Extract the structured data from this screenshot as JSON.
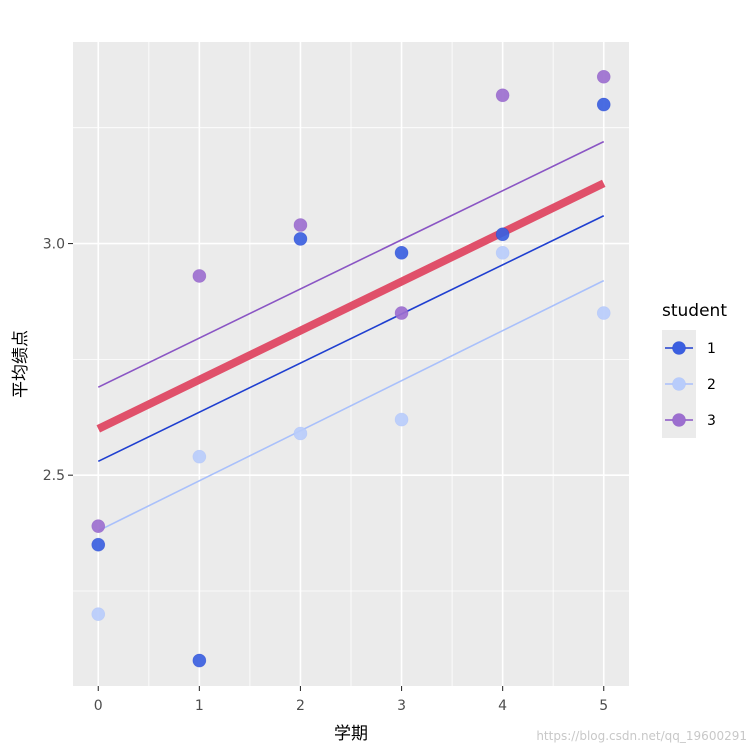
{
  "chart_data": {
    "type": "scatter",
    "xlabel": "学期",
    "ylabel": "平均绩点",
    "xlim": [
      -0.25,
      5.25
    ],
    "ylim": [
      2.045,
      3.435
    ],
    "x_ticks": [
      0,
      1,
      2,
      3,
      4,
      5
    ],
    "y_ticks": [
      2.5,
      3.0
    ],
    "y_minor_ticks": [
      2.25,
      2.75,
      3.25
    ],
    "x_minor_ticks": [
      0.5,
      1.5,
      2.5,
      3.5,
      4.5
    ],
    "grid": true,
    "legend_position": "right",
    "legend": {
      "title": "student",
      "entries": [
        {
          "label": "1",
          "color": "#3b5fe0"
        },
        {
          "label": "2",
          "color": "#b8ccfb"
        },
        {
          "label": "3",
          "color": "#9c6fcf"
        }
      ]
    },
    "series": [
      {
        "name": "1",
        "color": "#3b5fe0",
        "line_color": "#1f3fd0",
        "x": [
          0,
          1,
          2,
          3,
          4,
          5
        ],
        "y": [
          2.35,
          2.1,
          3.01,
          2.98,
          3.02,
          3.3
        ],
        "fit": [
          2.53,
          3.06
        ]
      },
      {
        "name": "2",
        "color": "#b8ccfb",
        "line_color": "#a9c0fb",
        "x": [
          0,
          1,
          2,
          3,
          4,
          5
        ],
        "y": [
          2.2,
          2.54,
          2.59,
          2.62,
          2.98,
          2.85
        ],
        "fit": [
          2.38,
          2.92
        ]
      },
      {
        "name": "3",
        "color": "#9c6fcf",
        "line_color": "#8a55c4",
        "x": [
          0,
          1,
          2,
          3,
          4,
          5
        ],
        "y": [
          2.39,
          2.93,
          3.04,
          2.85,
          3.32,
          3.36
        ],
        "fit": [
          2.69,
          3.22
        ]
      }
    ],
    "overall_fit": {
      "color": "#e0506a",
      "y": [
        2.6,
        3.13
      ]
    }
  },
  "watermark": "https://blog.csdn.net/qq_19600291"
}
